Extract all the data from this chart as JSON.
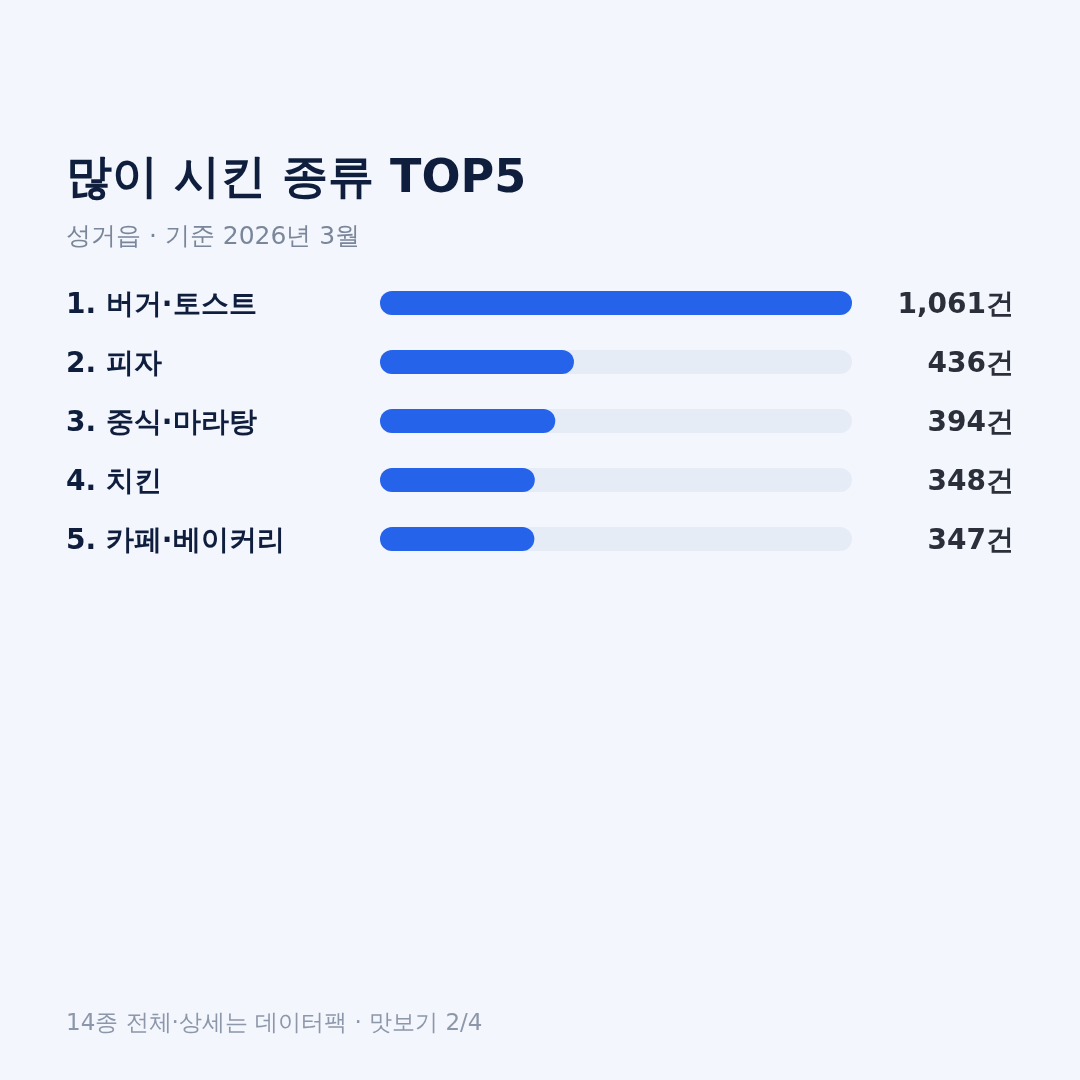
{
  "chart_data": {
    "type": "bar",
    "orientation": "horizontal",
    "title": "많이 시킨 종류 TOP5",
    "subtitle": "성거읍 · 기준 2026년 3월",
    "categories": [
      "1. 버거·토스트",
      "2. 피자",
      "3. 중식·마라탕",
      "4. 치킨",
      "5. 카페·베이커리"
    ],
    "values": [
      1061,
      436,
      394,
      348,
      347
    ],
    "value_labels": [
      "1,061건",
      "436건",
      "394건",
      "348건",
      "347건"
    ],
    "color": "#2563eb",
    "annotations": [
      "14종 전체·상세는 데이터팩 · 맛보기 2/4"
    ]
  }
}
